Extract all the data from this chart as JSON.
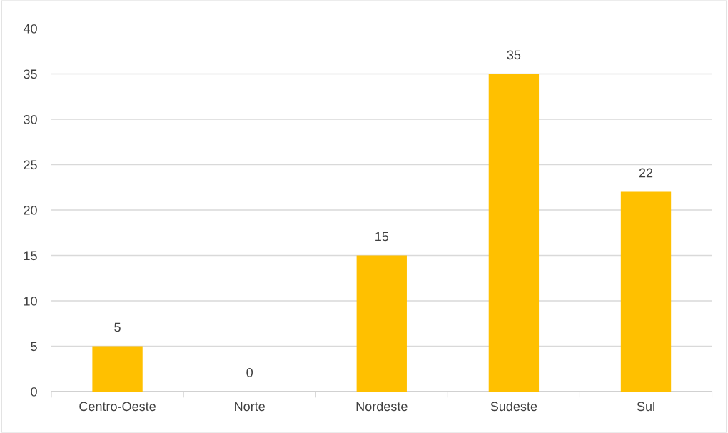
{
  "chart_data": {
    "type": "bar",
    "categories": [
      "Centro-Oeste",
      "Norte",
      "Nordeste",
      "Sudeste",
      "Sul"
    ],
    "values": [
      5,
      0,
      15,
      35,
      22
    ],
    "color": "#ffc000",
    "ylim": [
      0,
      40
    ],
    "yticks": [
      0,
      5,
      10,
      15,
      20,
      25,
      30,
      35,
      40
    ],
    "grid": "y",
    "data_labels": true
  }
}
